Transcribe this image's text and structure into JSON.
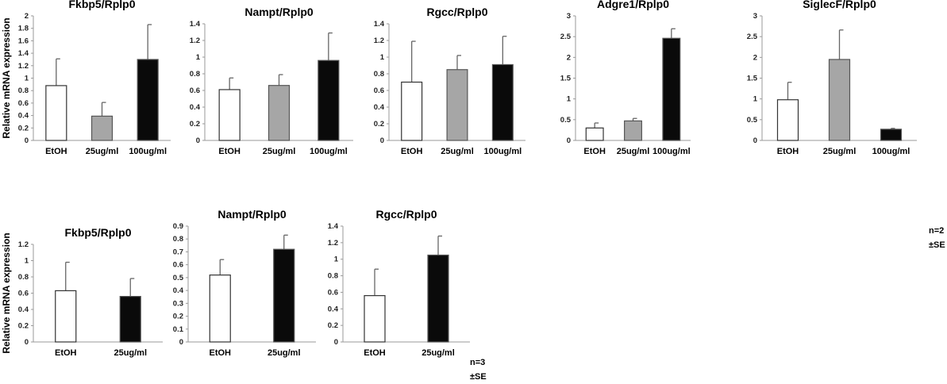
{
  "chart_data": [
    {
      "type": "bar",
      "title": "Fkbp5/Rplp0",
      "ylabel": "Relative mRNA expression",
      "categories": [
        "EtOH",
        "25ug/ml",
        "100ug/ml"
      ],
      "values": [
        0.88,
        0.39,
        1.3
      ],
      "error_upper": [
        1.31,
        0.61,
        1.86
      ],
      "colors": [
        "#ffffff",
        "#a6a6a6",
        "#0a0a0a"
      ],
      "ylim": [
        0,
        2
      ],
      "ystep": 0.2,
      "yticks": [
        "0",
        "0.2",
        "0.4",
        "0.6",
        "0.8",
        "1",
        "1.2",
        "1.4",
        "1.6",
        "1.8",
        "2"
      ]
    },
    {
      "type": "bar",
      "title": "Nampt/Rplp0",
      "ylabel": "",
      "categories": [
        "EtOH",
        "25ug/ml",
        "100ug/ml"
      ],
      "values": [
        0.61,
        0.66,
        0.96
      ],
      "error_upper": [
        0.75,
        0.79,
        1.29
      ],
      "colors": [
        "#ffffff",
        "#a6a6a6",
        "#0a0a0a"
      ],
      "ylim": [
        0,
        1.4
      ],
      "ystep": 0.2,
      "yticks": [
        "0",
        "0.2",
        "0.4",
        "0.6",
        "0.8",
        "1",
        "1.2",
        "1.4"
      ]
    },
    {
      "type": "bar",
      "title": "Rgcc/Rplp0",
      "ylabel": "",
      "categories": [
        "EtOH",
        "25ug/ml",
        "100ug/ml"
      ],
      "values": [
        0.7,
        0.85,
        0.91
      ],
      "error_upper": [
        1.19,
        1.02,
        1.25
      ],
      "colors": [
        "#ffffff",
        "#a6a6a6",
        "#0a0a0a"
      ],
      "ylim": [
        0,
        1.4
      ],
      "ystep": 0.2,
      "yticks": [
        "0",
        "0.2",
        "0.4",
        "0.6",
        "0.8",
        "1",
        "1.2",
        "1.4"
      ]
    },
    {
      "type": "bar",
      "title": "Adgre1/Rplp0",
      "ylabel": "",
      "categories": [
        "EtOH",
        "25ug/ml",
        "100ug/ml"
      ],
      "values": [
        0.3,
        0.47,
        2.46
      ],
      "error_upper": [
        0.42,
        0.53,
        2.69
      ],
      "colors": [
        "#ffffff",
        "#a6a6a6",
        "#0a0a0a"
      ],
      "ylim": [
        0,
        3
      ],
      "ystep": 0.5,
      "yticks": [
        "0",
        "0.5",
        "1",
        "1.5",
        "2",
        "2.5",
        "3"
      ]
    },
    {
      "type": "bar",
      "title": "SiglecF/Rplp0",
      "ylabel": "",
      "categories": [
        "EtOH",
        "25ug/ml",
        "100ug/ml"
      ],
      "values": [
        0.98,
        1.95,
        0.27
      ],
      "error_upper": [
        1.4,
        2.66,
        0.29
      ],
      "colors": [
        "#ffffff",
        "#a6a6a6",
        "#0a0a0a"
      ],
      "ylim": [
        0,
        3
      ],
      "ystep": 0.5,
      "yticks": [
        "0",
        "0.5",
        "1",
        "1.5",
        "2",
        "2.5",
        "3"
      ]
    },
    {
      "type": "bar",
      "title": "Fkbp5/Rplp0",
      "ylabel": "Relative mRNA expression",
      "categories": [
        "EtOH",
        "25ug/ml"
      ],
      "values": [
        0.63,
        0.56
      ],
      "error_upper": [
        0.98,
        0.78
      ],
      "colors": [
        "#ffffff",
        "#0a0a0a"
      ],
      "ylim": [
        0,
        1.2
      ],
      "ystep": 0.2,
      "yticks": [
        "0",
        "0.2",
        "0.4",
        "0.6",
        "0.8",
        "1",
        "1.2"
      ]
    },
    {
      "type": "bar",
      "title": "Nampt/Rplp0",
      "ylabel": "",
      "categories": [
        "EtOH",
        "25ug/ml"
      ],
      "values": [
        0.52,
        0.72
      ],
      "error_upper": [
        0.64,
        0.83
      ],
      "colors": [
        "#ffffff",
        "#0a0a0a"
      ],
      "ylim": [
        0,
        0.9
      ],
      "ystep": 0.1,
      "yticks": [
        "0",
        "0.1",
        "0.2",
        "0.3",
        "0.4",
        "0.5",
        "0.6",
        "0.7",
        "0.8",
        "0.9"
      ]
    },
    {
      "type": "bar",
      "title": "Rgcc/Rplp0",
      "ylabel": "",
      "categories": [
        "EtOH",
        "25ug/ml"
      ],
      "values": [
        0.56,
        1.05
      ],
      "error_upper": [
        0.88,
        1.28
      ],
      "colors": [
        "#ffffff",
        "#0a0a0a"
      ],
      "ylim": [
        0,
        1.4
      ],
      "ystep": 0.2,
      "yticks": [
        "0",
        "0.2",
        "0.4",
        "0.6",
        "0.8",
        "1",
        "1.2",
        "1.4"
      ]
    }
  ],
  "notes": {
    "top_n": "n=2",
    "top_se": "±SE",
    "bottom_n": "n=3",
    "bottom_se": "±SE"
  }
}
